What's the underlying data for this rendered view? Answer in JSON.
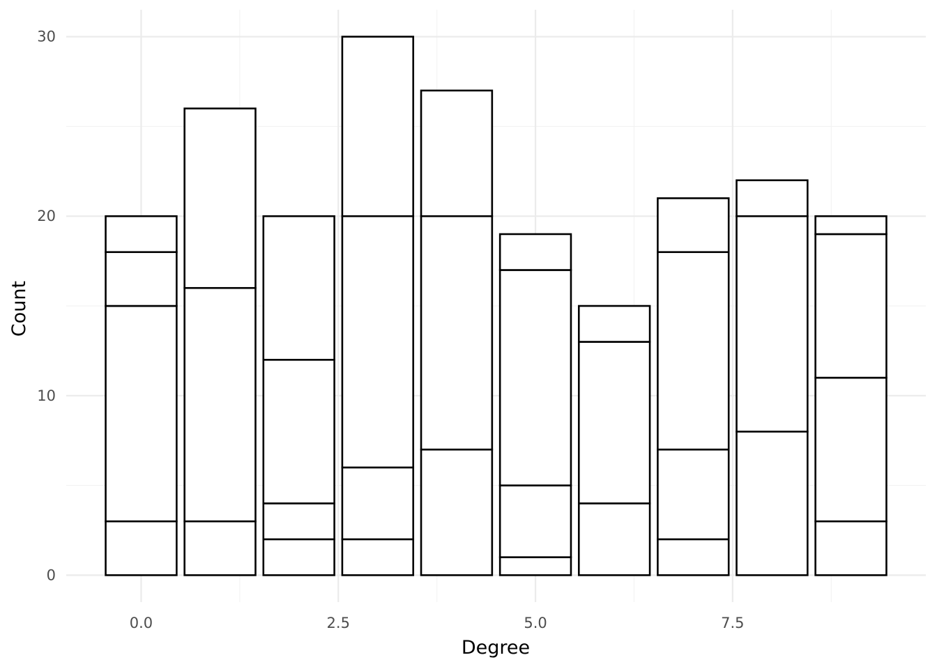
{
  "chart_data": {
    "type": "bar",
    "stacked": true,
    "x": [
      0,
      1,
      2,
      3,
      4,
      5,
      6,
      7,
      8,
      9
    ],
    "stack_boundaries": [
      [
        3,
        15,
        18,
        20
      ],
      [
        3,
        16,
        26
      ],
      [
        2,
        4,
        12,
        20
      ],
      [
        2,
        6,
        20,
        30
      ],
      [
        7,
        20,
        27
      ],
      [
        1,
        5,
        17,
        19
      ],
      [
        4,
        13,
        15
      ],
      [
        2,
        7,
        18,
        21
      ],
      [
        8,
        20,
        22
      ],
      [
        3,
        11,
        19,
        20
      ]
    ],
    "totals": [
      20,
      26,
      20,
      30,
      27,
      19,
      15,
      21,
      22,
      20
    ],
    "xlabel": "Degree",
    "ylabel": "Count",
    "xlim": [
      -0.95,
      9.95
    ],
    "ylim": [
      -1.5,
      31.5
    ],
    "x_ticks": [
      0,
      2.5,
      5,
      7.5
    ],
    "x_tick_labels": [
      "0.0",
      "2.5",
      "5.0",
      "7.5"
    ],
    "y_ticks": [
      0,
      10,
      20,
      30
    ],
    "y_tick_labels": [
      "0",
      "10",
      "20",
      "30"
    ],
    "bar_width": 0.9,
    "grid": true,
    "legend": "none",
    "colors": {
      "bar_fill": "#ffffff",
      "bar_outline": "#000000",
      "grid_major": "#ebebeb",
      "grid_minor": "#f2f2f2"
    }
  }
}
